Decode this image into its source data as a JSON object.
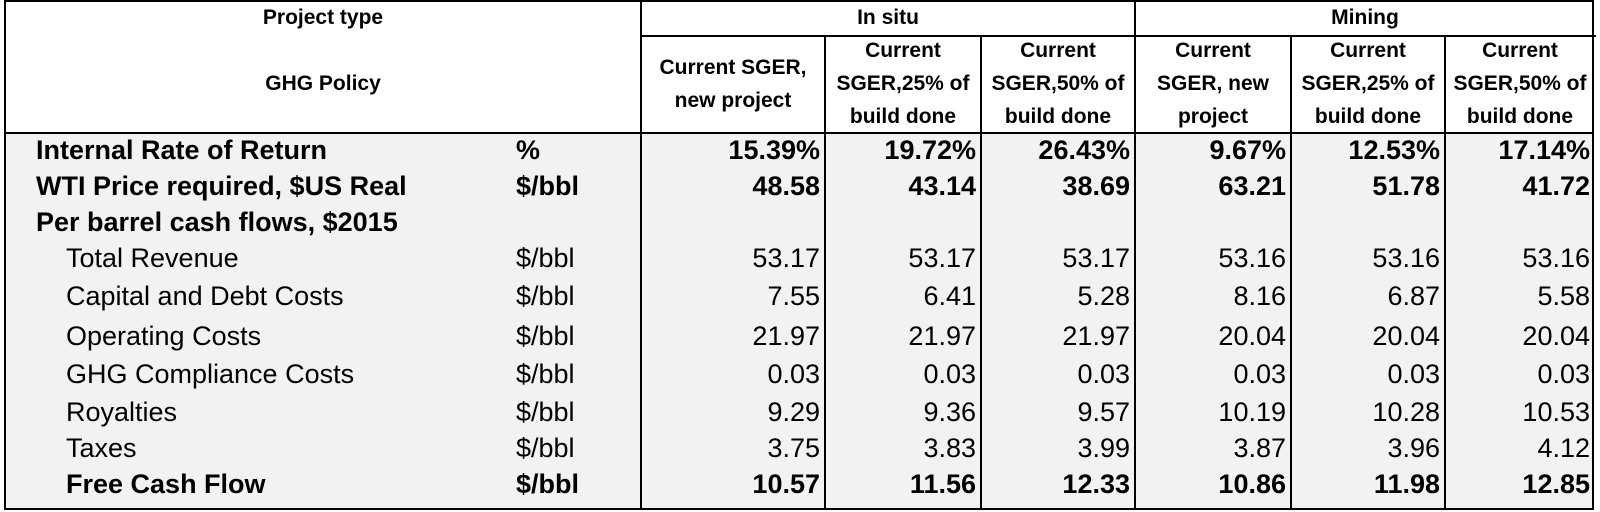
{
  "header": {
    "project_type_label": "Project type",
    "ghg_policy_label": "GHG Policy",
    "groups": [
      "In situ",
      "Mining"
    ],
    "columns": [
      "Current SGER,\nnew project",
      "Current\nSGER,25% of\nbuild done",
      "Current\nSGER,50% of\nbuild done",
      "Current\nSGER, new\nproject",
      "Current\nSGER,25% of\nbuild done",
      "Current\nSGER,50% of\nbuild done"
    ]
  },
  "rows": [
    {
      "label": "Internal Rate of Return",
      "unit": "%",
      "values": [
        "15.39%",
        "19.72%",
        "26.43%",
        "9.67%",
        "12.53%",
        "17.14%"
      ],
      "bold": true
    },
    {
      "label": "WTI Price required, $US Real",
      "unit": "$/bbl",
      "values": [
        "48.58",
        "43.14",
        "38.69",
        "63.21",
        "51.78",
        "41.72"
      ],
      "bold": true
    },
    {
      "label": "Per barrel cash flows, $2015",
      "unit": "",
      "values": [
        "",
        "",
        "",
        "",
        "",
        ""
      ],
      "bold": true
    },
    {
      "label": "Total Revenue",
      "unit": "$/bbl",
      "values": [
        "53.17",
        "53.17",
        "53.17",
        "53.16",
        "53.16",
        "53.16"
      ],
      "bold": false
    },
    {
      "label": "Capital and Debt Costs",
      "unit": "$/bbl",
      "values": [
        "7.55",
        "6.41",
        "5.28",
        "8.16",
        "6.87",
        "5.58"
      ],
      "bold": false
    },
    {
      "label": "Operating Costs",
      "unit": "$/bbl",
      "values": [
        "21.97",
        "21.97",
        "21.97",
        "20.04",
        "20.04",
        "20.04"
      ],
      "bold": false
    },
    {
      "label": "GHG Compliance Costs",
      "unit": "$/bbl",
      "values": [
        "0.03",
        "0.03",
        "0.03",
        "0.03",
        "0.03",
        "0.03"
      ],
      "bold": false
    },
    {
      "label": "Royalties",
      "unit": "$/bbl",
      "values": [
        "9.29",
        "9.36",
        "9.57",
        "10.19",
        "10.28",
        "10.53"
      ],
      "bold": false
    },
    {
      "label": "Taxes",
      "unit": "$/bbl",
      "values": [
        "3.75",
        "3.83",
        "3.99",
        "3.87",
        "3.96",
        "4.12"
      ],
      "bold": false
    },
    {
      "label": "Free Cash Flow",
      "unit": "$/bbl",
      "values": [
        "10.57",
        "11.56",
        "12.33",
        "10.86",
        "11.98",
        "12.85"
      ],
      "bold": true
    }
  ]
}
